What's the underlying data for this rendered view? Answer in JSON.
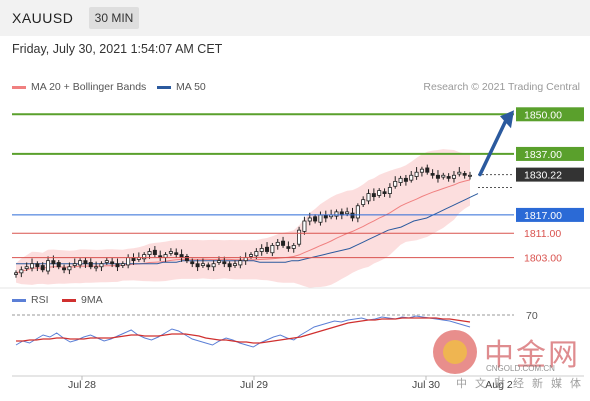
{
  "header": {
    "symbol": "XAUUSD",
    "timeframe": "30 MIN"
  },
  "datetime": "Friday, July 30, 2021 1:54:07 AM CET",
  "legend": [
    {
      "label": "MA 20 + Bollinger Bands",
      "color": "#f08080"
    },
    {
      "label": "MA 50",
      "color": "#2b5a9e"
    }
  ],
  "credit": "Research © 2021 Trading Central",
  "rsi_legend": [
    {
      "label": "RSI",
      "color": "#5b7fd6"
    },
    {
      "label": "9MA",
      "color": "#d0302f"
    }
  ],
  "watermark": {
    "name": "中金网",
    "url": "CNGOLD.COM.CN",
    "sub": "中文财经新媒体"
  },
  "chart_data": {
    "type": "candlestick",
    "symbol": "XAUUSD",
    "price_range": [
      1795,
      1856
    ],
    "x_ticks": [
      "Jul 28",
      "Jul 29",
      "Jul 30",
      "Aug 2"
    ],
    "levels": [
      {
        "value": 1850.0,
        "label": "1850.00",
        "kind": "resistance-target",
        "color": "#5aa02c"
      },
      {
        "value": 1837.0,
        "label": "1837.00",
        "kind": "resistance",
        "color": "#5aa02c"
      },
      {
        "value": 1830.22,
        "label": "1830.22",
        "kind": "last-price",
        "color": "#333333"
      },
      {
        "value": 1817.0,
        "label": "1817.00",
        "kind": "pivot",
        "color": "#2b6ad6"
      },
      {
        "value": 1811.0,
        "label": "1811.00",
        "kind": "support",
        "color": "#d9534f"
      },
      {
        "value": 1803.0,
        "label": "1803.00",
        "kind": "support",
        "color": "#d9534f"
      }
    ],
    "close_series": [
      1798,
      1799,
      1800,
      1801,
      1800,
      1799,
      1802,
      1801,
      1800,
      1799,
      1800,
      1801,
      1802,
      1801,
      1800,
      1800,
      1801,
      1802,
      1801,
      1800,
      1801,
      1803,
      1802,
      1803,
      1804,
      1805,
      1804,
      1803,
      1804,
      1805,
      1804,
      1803,
      1802,
      1801,
      1800,
      1801,
      1800,
      1801,
      1802,
      1801,
      1800,
      1801,
      1802,
      1803,
      1804,
      1805,
      1806,
      1805,
      1807,
      1808,
      1807,
      1806,
      1807,
      1812,
      1815,
      1816,
      1815,
      1817,
      1816,
      1817,
      1818,
      1817,
      1818,
      1816,
      1820,
      1822,
      1824,
      1823,
      1825,
      1824,
      1826,
      1828,
      1829,
      1828,
      1830,
      1831,
      1832,
      1831,
      1830,
      1829,
      1830,
      1829,
      1830,
      1831,
      1830,
      1830
    ],
    "ma50_series": [
      1801,
      1801,
      1801,
      1801,
      1801,
      1801,
      1801,
      1801,
      1801,
      1801,
      1801,
      1801,
      1801,
      1801,
      1801,
      1801,
      1801,
      1801,
      1801,
      1801,
      1801,
      1801,
      1801,
      1801.5,
      1801.5,
      1801.5,
      1802,
      1802,
      1802,
      1802,
      1802,
      1802,
      1802,
      1802,
      1802,
      1802,
      1802,
      1802,
      1801.5,
      1801.5,
      1801.5,
      1801.5,
      1801.5,
      1802,
      1802,
      1802.5,
      1803,
      1803.5,
      1804,
      1804.5,
      1805,
      1805.5,
      1806,
      1807,
      1808,
      1809,
      1810,
      1811,
      1812,
      1812.5,
      1813,
      1814,
      1815,
      1815.5,
      1816,
      1817,
      1818,
      1819,
      1820,
      1821,
      1822,
      1823,
      1824
    ],
    "rsi": {
      "level": 70,
      "ylim": [
        20,
        80
      ],
      "rsi_series": [
        40,
        44,
        42,
        46,
        50,
        48,
        52,
        47,
        43,
        45,
        48,
        50,
        47,
        44,
        46,
        49,
        52,
        55,
        50,
        47,
        45,
        48,
        52,
        56,
        54,
        50,
        46,
        44,
        42,
        40,
        44,
        47,
        45,
        42,
        40,
        38,
        42,
        45,
        48,
        50,
        47,
        45,
        50,
        54,
        58,
        60,
        62,
        64,
        63,
        65,
        66,
        67,
        65,
        66,
        68,
        67,
        66,
        68,
        67,
        69,
        68,
        67,
        66,
        65,
        64,
        62,
        60,
        58
      ],
      "ma9_series": [
        44,
        44,
        45,
        45,
        46,
        46,
        47,
        47,
        46,
        46,
        46,
        47,
        47,
        47,
        47,
        48,
        49,
        50,
        50,
        49,
        49,
        49,
        50,
        51,
        51,
        51,
        50,
        49,
        47,
        46,
        45,
        45,
        44,
        43,
        43,
        42,
        42,
        43,
        44,
        45,
        46,
        47,
        48,
        50,
        52,
        54,
        56,
        58,
        60,
        62,
        63,
        64,
        65,
        65,
        66,
        66,
        66,
        67,
        67,
        67,
        67,
        67,
        67,
        66,
        66,
        65,
        64,
        63
      ]
    }
  }
}
